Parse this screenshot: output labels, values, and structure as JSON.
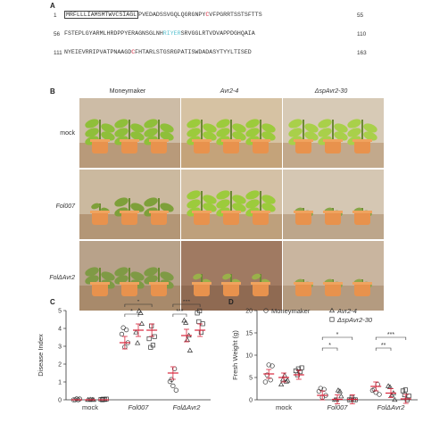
{
  "panel_a": {
    "label": "A",
    "lines": [
      {
        "start": "1",
        "sp": "MRFLLLIAMSMTWVCSIAGL",
        "parts": [
          {
            "t": "PVEDADSSVGQLQGRGNPY",
            "c": ""
          },
          {
            "t": "C",
            "c": "red"
          },
          {
            "t": "VFPGRRTSSTSFTTS",
            "c": ""
          }
        ],
        "end": "55"
      },
      {
        "start": "56",
        "sp": "",
        "parts": [
          {
            "t": "FSTEPLGYARMLHRDPPYERAGNSGLNH",
            "c": ""
          },
          {
            "t": "RIYER",
            "c": "cyan"
          },
          {
            "t": "SRVGGLRTVDVAPPDGHQAIA",
            "c": ""
          }
        ],
        "end": "110"
      },
      {
        "start": "111",
        "sp": "",
        "parts": [
          {
            "t": "NYEIEVRRIPVATPNAAGD",
            "c": ""
          },
          {
            "t": "C",
            "c": "red"
          },
          {
            "t": "FHTARLSTGSRGPATISWDADASYTYYLTISED",
            "c": ""
          }
        ],
        "end": "163"
      }
    ]
  },
  "panel_b": {
    "label": "B",
    "columns": [
      "Moneymaker",
      "Avr2-4",
      "ΔspAvr2-30"
    ],
    "rows": [
      "mock",
      "Fol007",
      "FolΔAvr2"
    ]
  },
  "panel_c": {
    "label": "C",
    "ylabel": "Disease Index",
    "yticks": [
      "0",
      "1",
      "2",
      "3",
      "4",
      "5"
    ],
    "groups": [
      "mock",
      "Fol007",
      "FolΔAvr2"
    ],
    "sig": [
      "*",
      "*",
      "***",
      "***"
    ]
  },
  "panel_d": {
    "label": "D",
    "ylabel": "Fresh Weight (g)",
    "yticks": [
      "0",
      "5",
      "10",
      "15",
      "20"
    ],
    "groups": [
      "mock",
      "Fol007",
      "FolΔAvr2"
    ],
    "legend": [
      {
        "marker": "○",
        "name": "Moneymaker"
      },
      {
        "marker": "△",
        "name": "Avr2-4"
      },
      {
        "marker": "□",
        "name": "ΔspAvr2-30"
      }
    ],
    "sig": [
      "*",
      "*",
      "***",
      "**"
    ]
  },
  "chart_data": [
    {
      "type": "scatter",
      "ylabel": "Disease Index",
      "ylim": [
        0,
        5
      ],
      "categories": [
        "mock",
        "Fol007",
        "FolΔAvr2"
      ],
      "series": [
        {
          "name": "Moneymaker",
          "means": [
            0,
            3.2,
            1.5
          ]
        },
        {
          "name": "Avr2-4",
          "means": [
            0,
            3.9,
            3.6
          ]
        },
        {
          "name": "ΔspAvr2-30",
          "means": [
            0,
            3.9,
            3.9
          ]
        }
      ]
    },
    {
      "type": "scatter",
      "ylabel": "Fresh Weight (g)",
      "ylim": [
        0,
        20
      ],
      "categories": [
        "mock",
        "Fol007",
        "FolΔAvr2"
      ],
      "series": [
        {
          "name": "Moneymaker",
          "means": [
            5.8,
            1.0,
            3.0
          ]
        },
        {
          "name": "Avr2-4",
          "means": [
            5.0,
            0.1,
            1.5
          ]
        },
        {
          "name": "ΔspAvr2-30",
          "means": [
            5.6,
            0.1,
            0.2
          ]
        }
      ]
    }
  ]
}
